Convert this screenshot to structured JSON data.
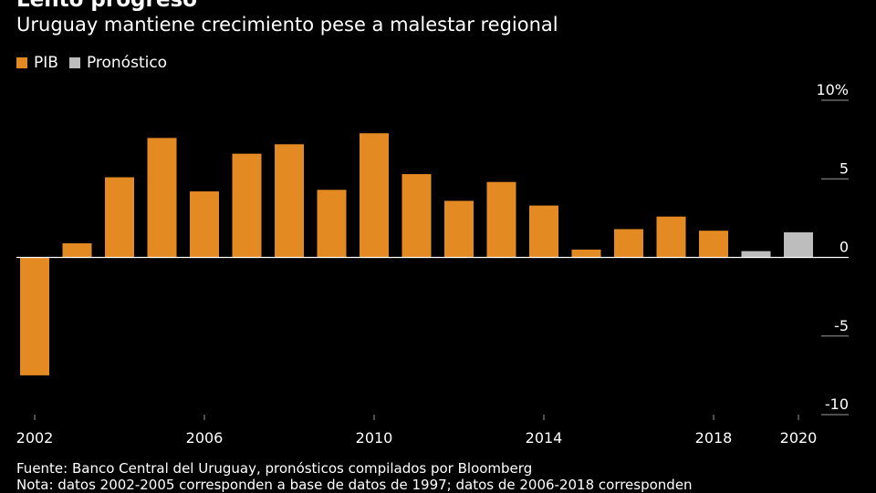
{
  "header": {
    "title": "Lento progreso",
    "subtitle": "Uruguay mantiene crecimiento pese a malestar regional"
  },
  "legend": {
    "items": [
      {
        "label": "PIB",
        "color": "#E38A23"
      },
      {
        "label": "Pronóstico",
        "color": "#BDBDBD"
      }
    ]
  },
  "chart_data": {
    "type": "bar",
    "title": "Lento progreso",
    "subtitle": "Uruguay mantiene crecimiento pese a malestar regional",
    "xlabel": "",
    "ylabel": "",
    "ylim": [
      -10,
      10
    ],
    "yticks": [
      "10%",
      "5",
      "0",
      "-5",
      "-10"
    ],
    "xticks": [
      "2002",
      "2006",
      "2010",
      "2014",
      "2018",
      "2020"
    ],
    "legend_position": "top-left",
    "grid": false,
    "series": [
      {
        "name": "PIB",
        "color": "#E38A23",
        "x": [
          2002,
          2003,
          2004,
          2005,
          2006,
          2007,
          2008,
          2009,
          2010,
          2011,
          2012,
          2013,
          2014,
          2015,
          2016,
          2017,
          2018
        ],
        "values": [
          -7.5,
          0.9,
          5.1,
          7.6,
          4.2,
          6.6,
          7.2,
          4.3,
          7.9,
          5.3,
          3.6,
          4.8,
          3.3,
          0.5,
          1.8,
          2.6,
          1.7
        ]
      },
      {
        "name": "Pronóstico",
        "color": "#BDBDBD",
        "x": [
          2019,
          2020
        ],
        "values": [
          0.4,
          1.6
        ]
      }
    ]
  },
  "footer": {
    "source": "Fuente: Banco Central del Uruguay, pronósticos compilados por Bloomberg",
    "note": "Nota: datos 2002-2005 corresponden a base de datos de 1997; datos de 2006-2018 corresponden"
  }
}
